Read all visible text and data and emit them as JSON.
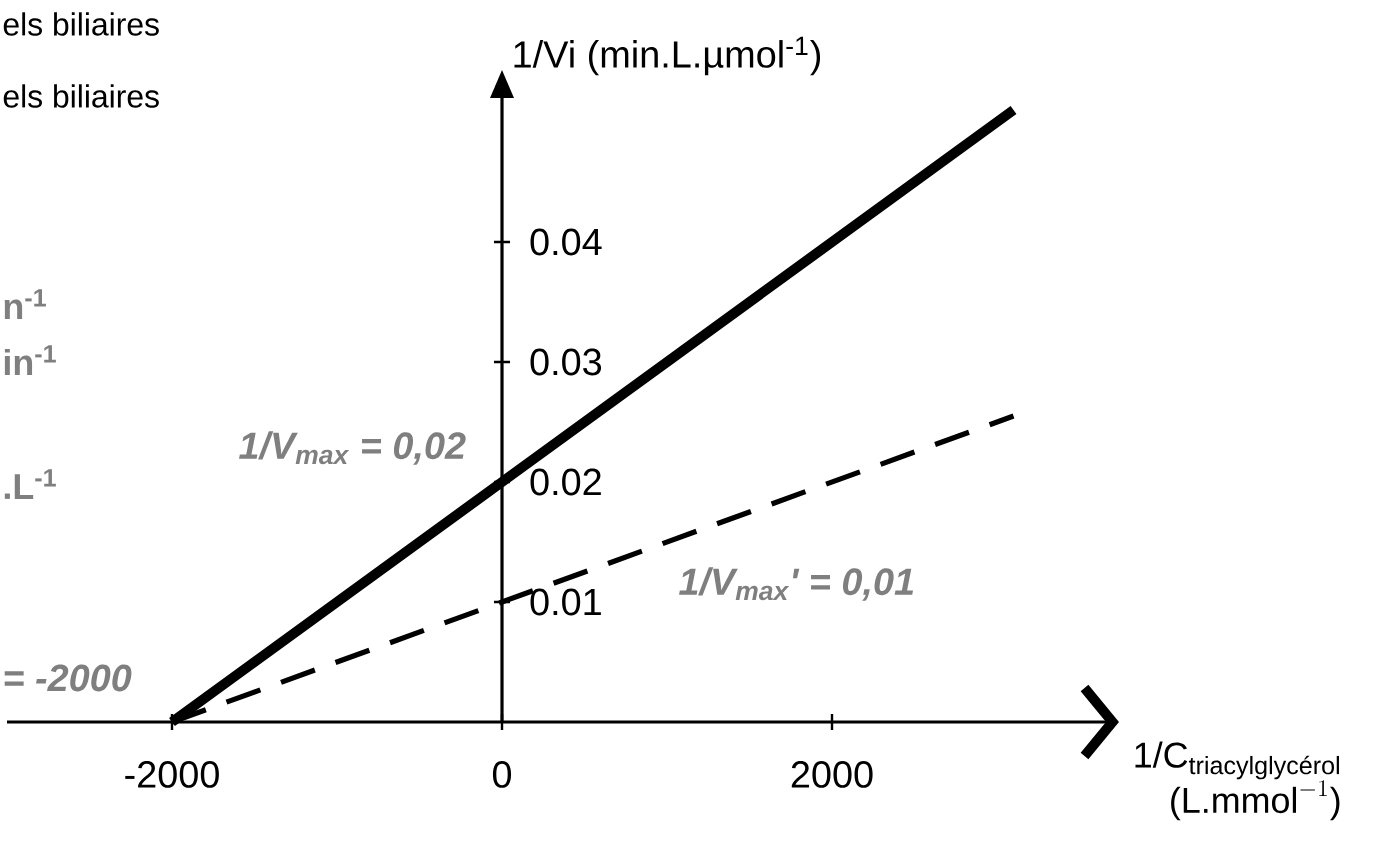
{
  "chart_data": {
    "type": "line",
    "xlabel": "\\begin{array}{r}\\text{1/C}_{\\text{triacylglycérol}}\\\\ \\text{(L.mmol}^{-1}\\text{)}\\end{array}",
    "ylabel": "1/Vi  (min.L.µmol$^{-1}$)",
    "x": [
      -2000,
      0,
      3100
    ],
    "series": [
      {
        "color": "#000000",
        "line_style": "solid",
        "values": [
          0,
          0.02,
          0.051
        ]
      },
      {
        "color": "#000000",
        "line_style": "dashed",
        "values": [
          0,
          0.01,
          0.0255
        ]
      }
    ],
    "xlim": [
      -3000,
      3700
    ],
    "ylim": [
      0,
      0.052
    ],
    "xticks": [
      -2000,
      0,
      2000
    ],
    "yticks": [
      0.01,
      0.02,
      0.03,
      0.04
    ],
    "marker": "none",
    "annotations": [
      "els biliaires",
      "els biliaires",
      "n$^{-1}$",
      "in$^{-1}$",
      ".L$^{-1}$",
      "= -2000",
      "1/V$_{max}$ = 0,02",
      "1/V$_{max}$' = 0,01"
    ]
  }
}
